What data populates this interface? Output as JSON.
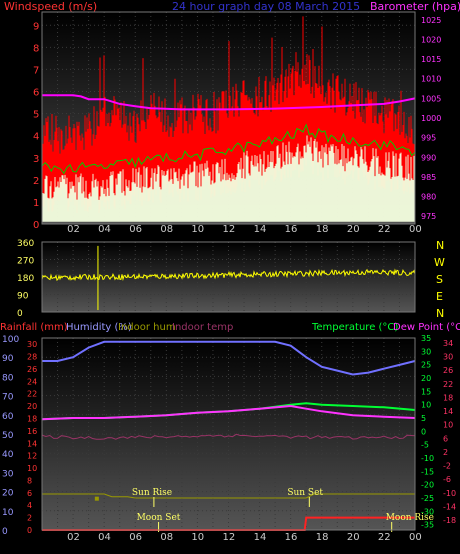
{
  "header": {
    "windspeed_label": "Windspeed (m/s)",
    "title": "24 hour graph day  08 March 2015",
    "barometer_label": "Barometer (hpa)"
  },
  "compass": [
    "N",
    "W",
    "S",
    "E",
    "N"
  ],
  "legend2": {
    "rainfall": "Rainfall (mm)",
    "humidity": "Humidity (%)",
    "indoor_hum": "Indoor hum",
    "indoor_temp": "Indoor temp",
    "temperature": "Temperature (°C)",
    "dewpoint": "Dew Point (°C)"
  },
  "annotations": {
    "sun_rise": "Sun Rise",
    "sun_set": "Sun Set",
    "moon_set": "Moon Set",
    "moon_rise": "Moon Rise"
  },
  "colors": {
    "wind": "#ff0000",
    "gust_low": "#f5ffe0",
    "wind_avg": "#00cc00",
    "barometer": "#ff00ff",
    "direction": "#ffff00",
    "humidity": "#7070ff",
    "temperature": "#00ff33",
    "dewpoint": "#ff33ff",
    "indoor_temp": "#993366",
    "rain": "#ff2222",
    "sun": "#999900",
    "axis_left": "#ff3333",
    "axis_right_top": "#ff33ff",
    "axis_hum": "#9999ff"
  },
  "chart_data": [
    {
      "type": "line",
      "x_ticks": [
        "02",
        "04",
        "06",
        "08",
        "10",
        "12",
        "14",
        "16",
        "18",
        "20",
        "22",
        "00"
      ],
      "y_left_ticks": [
        "0",
        "1",
        "2",
        "3",
        "4",
        "5",
        "6",
        "7",
        "8",
        "9"
      ],
      "y_left_range": [
        0,
        9.6
      ],
      "y_right_ticks": [
        "975",
        "980",
        "985",
        "990",
        "995",
        "1000",
        "1005",
        "1010",
        "1015",
        "1020",
        "1025"
      ],
      "y_right_range": [
        973,
        1027
      ],
      "series": [
        {
          "values": [
            [
              0,
              4.1
            ],
            [
              1,
              3.7
            ],
            [
              2,
              3.8
            ],
            [
              3,
              4.0
            ],
            [
              4,
              4.8
            ],
            [
              5,
              4.6
            ],
            [
              6,
              4.2
            ],
            [
              7,
              4.9
            ],
            [
              8,
              4.5
            ],
            [
              9,
              4.6
            ],
            [
              10,
              4.8
            ],
            [
              11,
              4.4
            ],
            [
              12,
              5.3
            ],
            [
              13,
              5.4
            ],
            [
              14,
              5.5
            ],
            [
              15,
              5.7
            ],
            [
              16,
              6.0
            ],
            [
              17,
              6.6
            ],
            [
              18,
              5.9
            ],
            [
              19,
              5.6
            ],
            [
              20,
              5.4
            ],
            [
              21,
              5.0
            ],
            [
              22,
              4.7
            ],
            [
              23,
              4.5
            ],
            [
              24,
              3.6
            ]
          ]
        },
        {
          "values": [
            [
              0,
              2.6
            ],
            [
              2,
              2.5
            ],
            [
              4,
              2.6
            ],
            [
              6,
              2.8
            ],
            [
              8,
              3.0
            ],
            [
              10,
              3.1
            ],
            [
              12,
              3.4
            ],
            [
              14,
              3.6
            ],
            [
              16,
              4.0
            ],
            [
              17,
              4.3
            ],
            [
              18,
              4.0
            ],
            [
              20,
              3.8
            ],
            [
              22,
              3.6
            ],
            [
              24,
              3.3
            ]
          ]
        },
        {
          "values": [
            [
              0,
              1005.8
            ],
            [
              2,
              1005.8
            ],
            [
              2.5,
              1005.5
            ],
            [
              3,
              1004.8
            ],
            [
              4,
              1004.8
            ],
            [
              5,
              1003.6
            ],
            [
              6,
              1003.0
            ],
            [
              7,
              1002.5
            ],
            [
              9,
              1002.2
            ],
            [
              12,
              1002.2
            ],
            [
              15,
              1002.4
            ],
            [
              18,
              1002.8
            ],
            [
              20,
              1003.2
            ],
            [
              22,
              1003.6
            ],
            [
              23,
              1004.2
            ],
            [
              24,
              1005.0
            ]
          ]
        }
      ]
    },
    {
      "type": "scatter",
      "y_ticks": [
        "360",
        "270",
        "180",
        "90",
        "0"
      ],
      "y_range": [
        0,
        360
      ],
      "series": [
        {
          "values": [
            [
              0,
              175
            ],
            [
              3,
              180
            ],
            [
              6,
              182
            ],
            [
              9,
              185
            ],
            [
              12,
              190
            ],
            [
              15,
              195
            ],
            [
              18,
              200
            ],
            [
              21,
              205
            ],
            [
              24,
              200
            ]
          ]
        }
      ]
    },
    {
      "type": "line",
      "y_hum_ticks": [
        "0",
        "10",
        "20",
        "30",
        "40",
        "50",
        "60",
        "70",
        "80",
        "90",
        "100"
      ],
      "y_hum_range": [
        0,
        100
      ],
      "y_rain_ticks": [
        "0",
        "2",
        "4",
        "6",
        "8",
        "10",
        "12",
        "14",
        "16",
        "18",
        "20",
        "22",
        "24",
        "26",
        "28",
        "30"
      ],
      "y_rain_range": [
        0,
        31
      ],
      "y_temp_ticks": [
        "35",
        "30",
        "25",
        "20",
        "15",
        "10",
        "5",
        "0",
        "-5",
        "-10",
        "-15",
        "-20",
        "-25",
        "-30",
        "-35"
      ],
      "y_dew_ticks": [
        "34",
        "30",
        "26",
        "22",
        "18",
        "14",
        "10",
        "6",
        "2",
        "-2",
        "-6",
        "-10",
        "-14",
        "-18"
      ],
      "temp_range": [
        -37,
        35
      ],
      "series": [
        {
          "values": [
            [
              0,
              88
            ],
            [
              1,
              88
            ],
            [
              2,
              90
            ],
            [
              3,
              95
            ],
            [
              4,
              98
            ],
            [
              8,
              98
            ],
            [
              12,
              98
            ],
            [
              15,
              98
            ],
            [
              16,
              96
            ],
            [
              17,
              90
            ],
            [
              18,
              85
            ],
            [
              19,
              83
            ],
            [
              20,
              81
            ],
            [
              21,
              82
            ],
            [
              22,
              84
            ],
            [
              23,
              86
            ],
            [
              24,
              88
            ]
          ]
        },
        {
          "values": [
            [
              0,
              4.5
            ],
            [
              2,
              5
            ],
            [
              4,
              5
            ],
            [
              6,
              5.5
            ],
            [
              8,
              6
            ],
            [
              10,
              7
            ],
            [
              12,
              7.5
            ],
            [
              14,
              8.5
            ],
            [
              16,
              10
            ],
            [
              17,
              10.5
            ],
            [
              18,
              10
            ],
            [
              20,
              9.5
            ],
            [
              22,
              9
            ],
            [
              24,
              8
            ]
          ]
        },
        {
          "values": [
            [
              0,
              4.5
            ],
            [
              2,
              5
            ],
            [
              4,
              5
            ],
            [
              6,
              5.5
            ],
            [
              8,
              6
            ],
            [
              10,
              7
            ],
            [
              12,
              7.5
            ],
            [
              14,
              8.5
            ],
            [
              16,
              9.5
            ],
            [
              17,
              8.5
            ],
            [
              18,
              7.5
            ],
            [
              20,
              6
            ],
            [
              22,
              5.5
            ],
            [
              24,
              5
            ]
          ]
        },
        {
          "values": [
            [
              0,
              -2
            ],
            [
              4,
              -2.5
            ],
            [
              8,
              -2
            ],
            [
              12,
              -1.5
            ],
            [
              16,
              -2
            ],
            [
              20,
              -2.5
            ],
            [
              24,
              -2
            ]
          ]
        },
        {
          "values": [
            [
              0,
              0
            ],
            [
              16,
              0
            ],
            [
              16.9,
              0
            ],
            [
              17,
              2
            ],
            [
              22.5,
              2
            ],
            [
              23.5,
              2
            ],
            [
              24,
              2
            ]
          ]
        },
        {
          "values": [
            [
              0,
              -23.5
            ],
            [
              4,
              -23.5
            ],
            [
              4.5,
              -24.5
            ],
            [
              5.5,
              -24.5
            ],
            [
              6,
              -25
            ],
            [
              17,
              -25
            ],
            [
              17.5,
              -23.5
            ],
            [
              24,
              -23.5
            ]
          ]
        }
      ],
      "events": [
        {
          "label_key": "sun_rise",
          "x": 7.2
        },
        {
          "label_key": "sun_set",
          "x": 17.2
        },
        {
          "label_key": "moon_set",
          "x": 7.5
        },
        {
          "label_key": "moon_rise",
          "x": 22.5
        }
      ]
    }
  ]
}
